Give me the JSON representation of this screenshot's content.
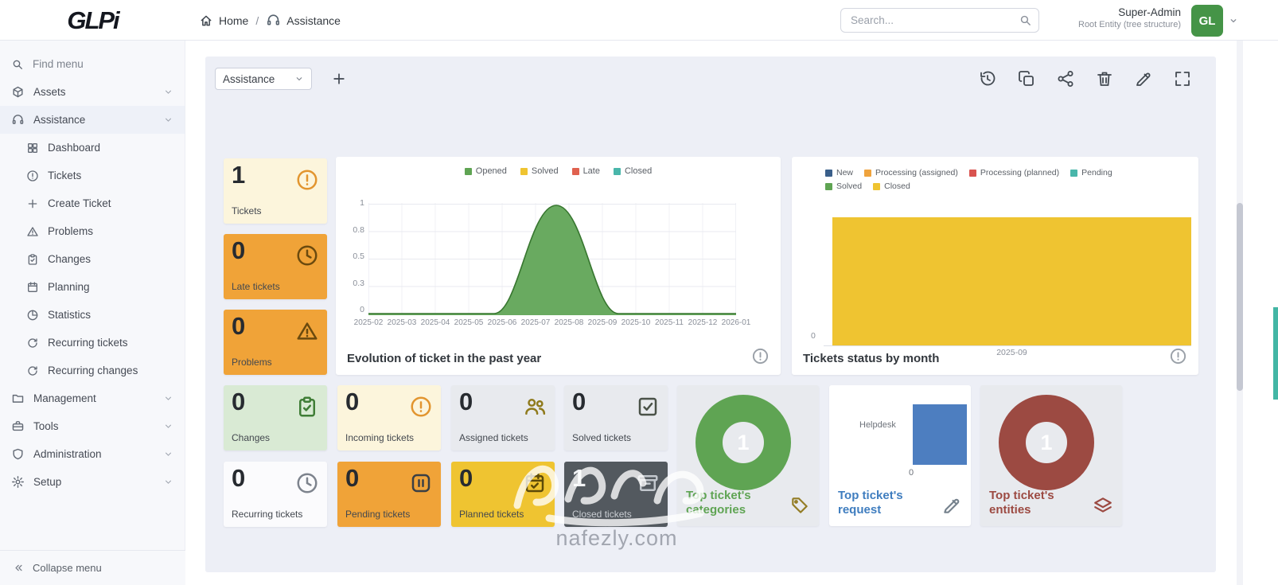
{
  "topbar": {
    "logo": "GLPi",
    "breadcrumb": {
      "home": "Home",
      "separator": "/",
      "current": "Assistance"
    },
    "search": {
      "placeholder": "Search..."
    },
    "user": {
      "name": "Super-Admin",
      "entity": "Root Entity (tree structure)",
      "initials": "GL"
    }
  },
  "sidebar": {
    "find_menu": "Find menu",
    "sections": [
      {
        "label": "Assets",
        "icon": "box-icon"
      },
      {
        "label": "Assistance",
        "icon": "headset-icon"
      },
      {
        "label": "Management",
        "icon": "folder-icon"
      },
      {
        "label": "Tools",
        "icon": "briefcase-icon"
      },
      {
        "label": "Administration",
        "icon": "shield-icon"
      },
      {
        "label": "Setup",
        "icon": "gear-icon"
      }
    ],
    "assistance_items": [
      {
        "label": "Dashboard",
        "icon": "dashboard-grid-icon"
      },
      {
        "label": "Tickets",
        "icon": "exclamation-circle-icon"
      },
      {
        "label": "Create Ticket",
        "icon": "plus-icon"
      },
      {
        "label": "Problems",
        "icon": "warning-triangle-icon"
      },
      {
        "label": "Changes",
        "icon": "clipboard-check-icon"
      },
      {
        "label": "Planning",
        "icon": "calendar-icon"
      },
      {
        "label": "Statistics",
        "icon": "pie-chart-icon"
      },
      {
        "label": "Recurring tickets",
        "icon": "refresh-icon"
      },
      {
        "label": "Recurring changes",
        "icon": "refresh-icon"
      }
    ],
    "collapse_label": "Collapse menu"
  },
  "toolbar": {
    "dashboard_select": "Assistance"
  },
  "stat_cards": [
    {
      "value": "1",
      "label": "Tickets",
      "bg": "#fcf5dc"
    },
    {
      "value": "0",
      "label": "Late tickets",
      "bg": "#f0a338"
    },
    {
      "value": "0",
      "label": "Problems",
      "bg": "#f0a338"
    },
    {
      "value": "0",
      "label": "Changes",
      "bg": "#d9ead4"
    },
    {
      "value": "0",
      "label": "Incoming tickets",
      "bg": "#fcf5dc"
    },
    {
      "value": "0",
      "label": "Assigned tickets",
      "bg": "#e8eaee"
    },
    {
      "value": "0",
      "label": "Solved tickets",
      "bg": "#e8eaee"
    },
    {
      "value": "0",
      "label": "Recurring tickets",
      "bg": "#fbfbfd"
    },
    {
      "value": "0",
      "label": "Pending tickets",
      "bg": "#f0a338"
    },
    {
      "value": "0",
      "label": "Planned tickets",
      "bg": "#efc431"
    },
    {
      "value": "1",
      "label": "Closed tickets",
      "bg": "#53595f"
    }
  ],
  "chart_data": [
    {
      "type": "area",
      "title": "Evolution of ticket in the past year",
      "x": [
        "2025-02",
        "2025-03",
        "2025-04",
        "2025-05",
        "2025-06",
        "2025-07",
        "2025-08",
        "2025-09",
        "2025-10",
        "2025-11",
        "2025-12",
        "2026-01"
      ],
      "y_tick_labels": [
        "1",
        "0.8",
        "0.5",
        "0.3",
        "0"
      ],
      "ylim": [
        0,
        1
      ],
      "legend": [
        {
          "label": "Opened",
          "color": "#5fa453"
        },
        {
          "label": "Solved",
          "color": "#efc431"
        },
        {
          "label": "Late",
          "color": "#e0614f"
        },
        {
          "label": "Closed",
          "color": "#49b6aa"
        }
      ],
      "series": [
        {
          "name": "Opened",
          "values": [
            0,
            0,
            0,
            0,
            0,
            1,
            0,
            0,
            0,
            0,
            0,
            0
          ]
        },
        {
          "name": "Solved",
          "values": [
            0,
            0,
            0,
            0,
            0,
            0,
            0,
            0,
            0,
            0,
            0,
            0
          ]
        },
        {
          "name": "Late",
          "values": [
            0,
            0,
            0,
            0,
            0,
            0,
            0,
            0,
            0,
            0,
            0,
            0
          ]
        },
        {
          "name": "Closed",
          "values": [
            0,
            0,
            0,
            0,
            0,
            0,
            0,
            0,
            0,
            0,
            0,
            0
          ]
        }
      ]
    },
    {
      "type": "bar",
      "title": "Tickets status by month",
      "categories": [
        "2025-09"
      ],
      "y_tick_labels": [
        "0"
      ],
      "legend_row1": [
        {
          "label": "New",
          "color": "#3a5f8a"
        },
        {
          "label": "Processing (assigned)",
          "color": "#efa33d"
        },
        {
          "label": "Processing (planned)",
          "color": "#d9534f"
        },
        {
          "label": "Pending",
          "color": "#49b6aa"
        }
      ],
      "legend_row2": [
        {
          "label": "Solved",
          "color": "#5fa453"
        },
        {
          "label": "Closed",
          "color": "#efc431"
        }
      ],
      "series": [
        {
          "name": "Closed",
          "color": "#efc431",
          "values": [
            1
          ]
        }
      ]
    },
    {
      "type": "pie",
      "title": "Top ticket's categories",
      "values": [
        1
      ],
      "center_label": "1",
      "color": "#5fa453"
    },
    {
      "type": "bar",
      "title": "Top ticket's request",
      "categories": [
        "Helpdesk"
      ],
      "values": [
        1
      ],
      "y_tick_labels": [
        "0"
      ],
      "color": "#4d7ec0"
    },
    {
      "type": "pie",
      "title": "Top ticket's entities",
      "values": [
        1
      ],
      "center_label": "1",
      "color": "#9c4a42"
    }
  ],
  "watermark": {
    "text": "nafezly.com"
  },
  "colors": {
    "panel_bg": "#edeff6",
    "orange": "#f0a338",
    "yellow": "#efc431",
    "cream": "#fcf5dc",
    "light_green": "#d9ead4",
    "gray_card": "#e8eaee",
    "dark_card": "#53595f",
    "green": "#5fa453",
    "blue": "#4d7ec0",
    "maroon": "#9c4a42",
    "avatar_green": "#459447"
  }
}
